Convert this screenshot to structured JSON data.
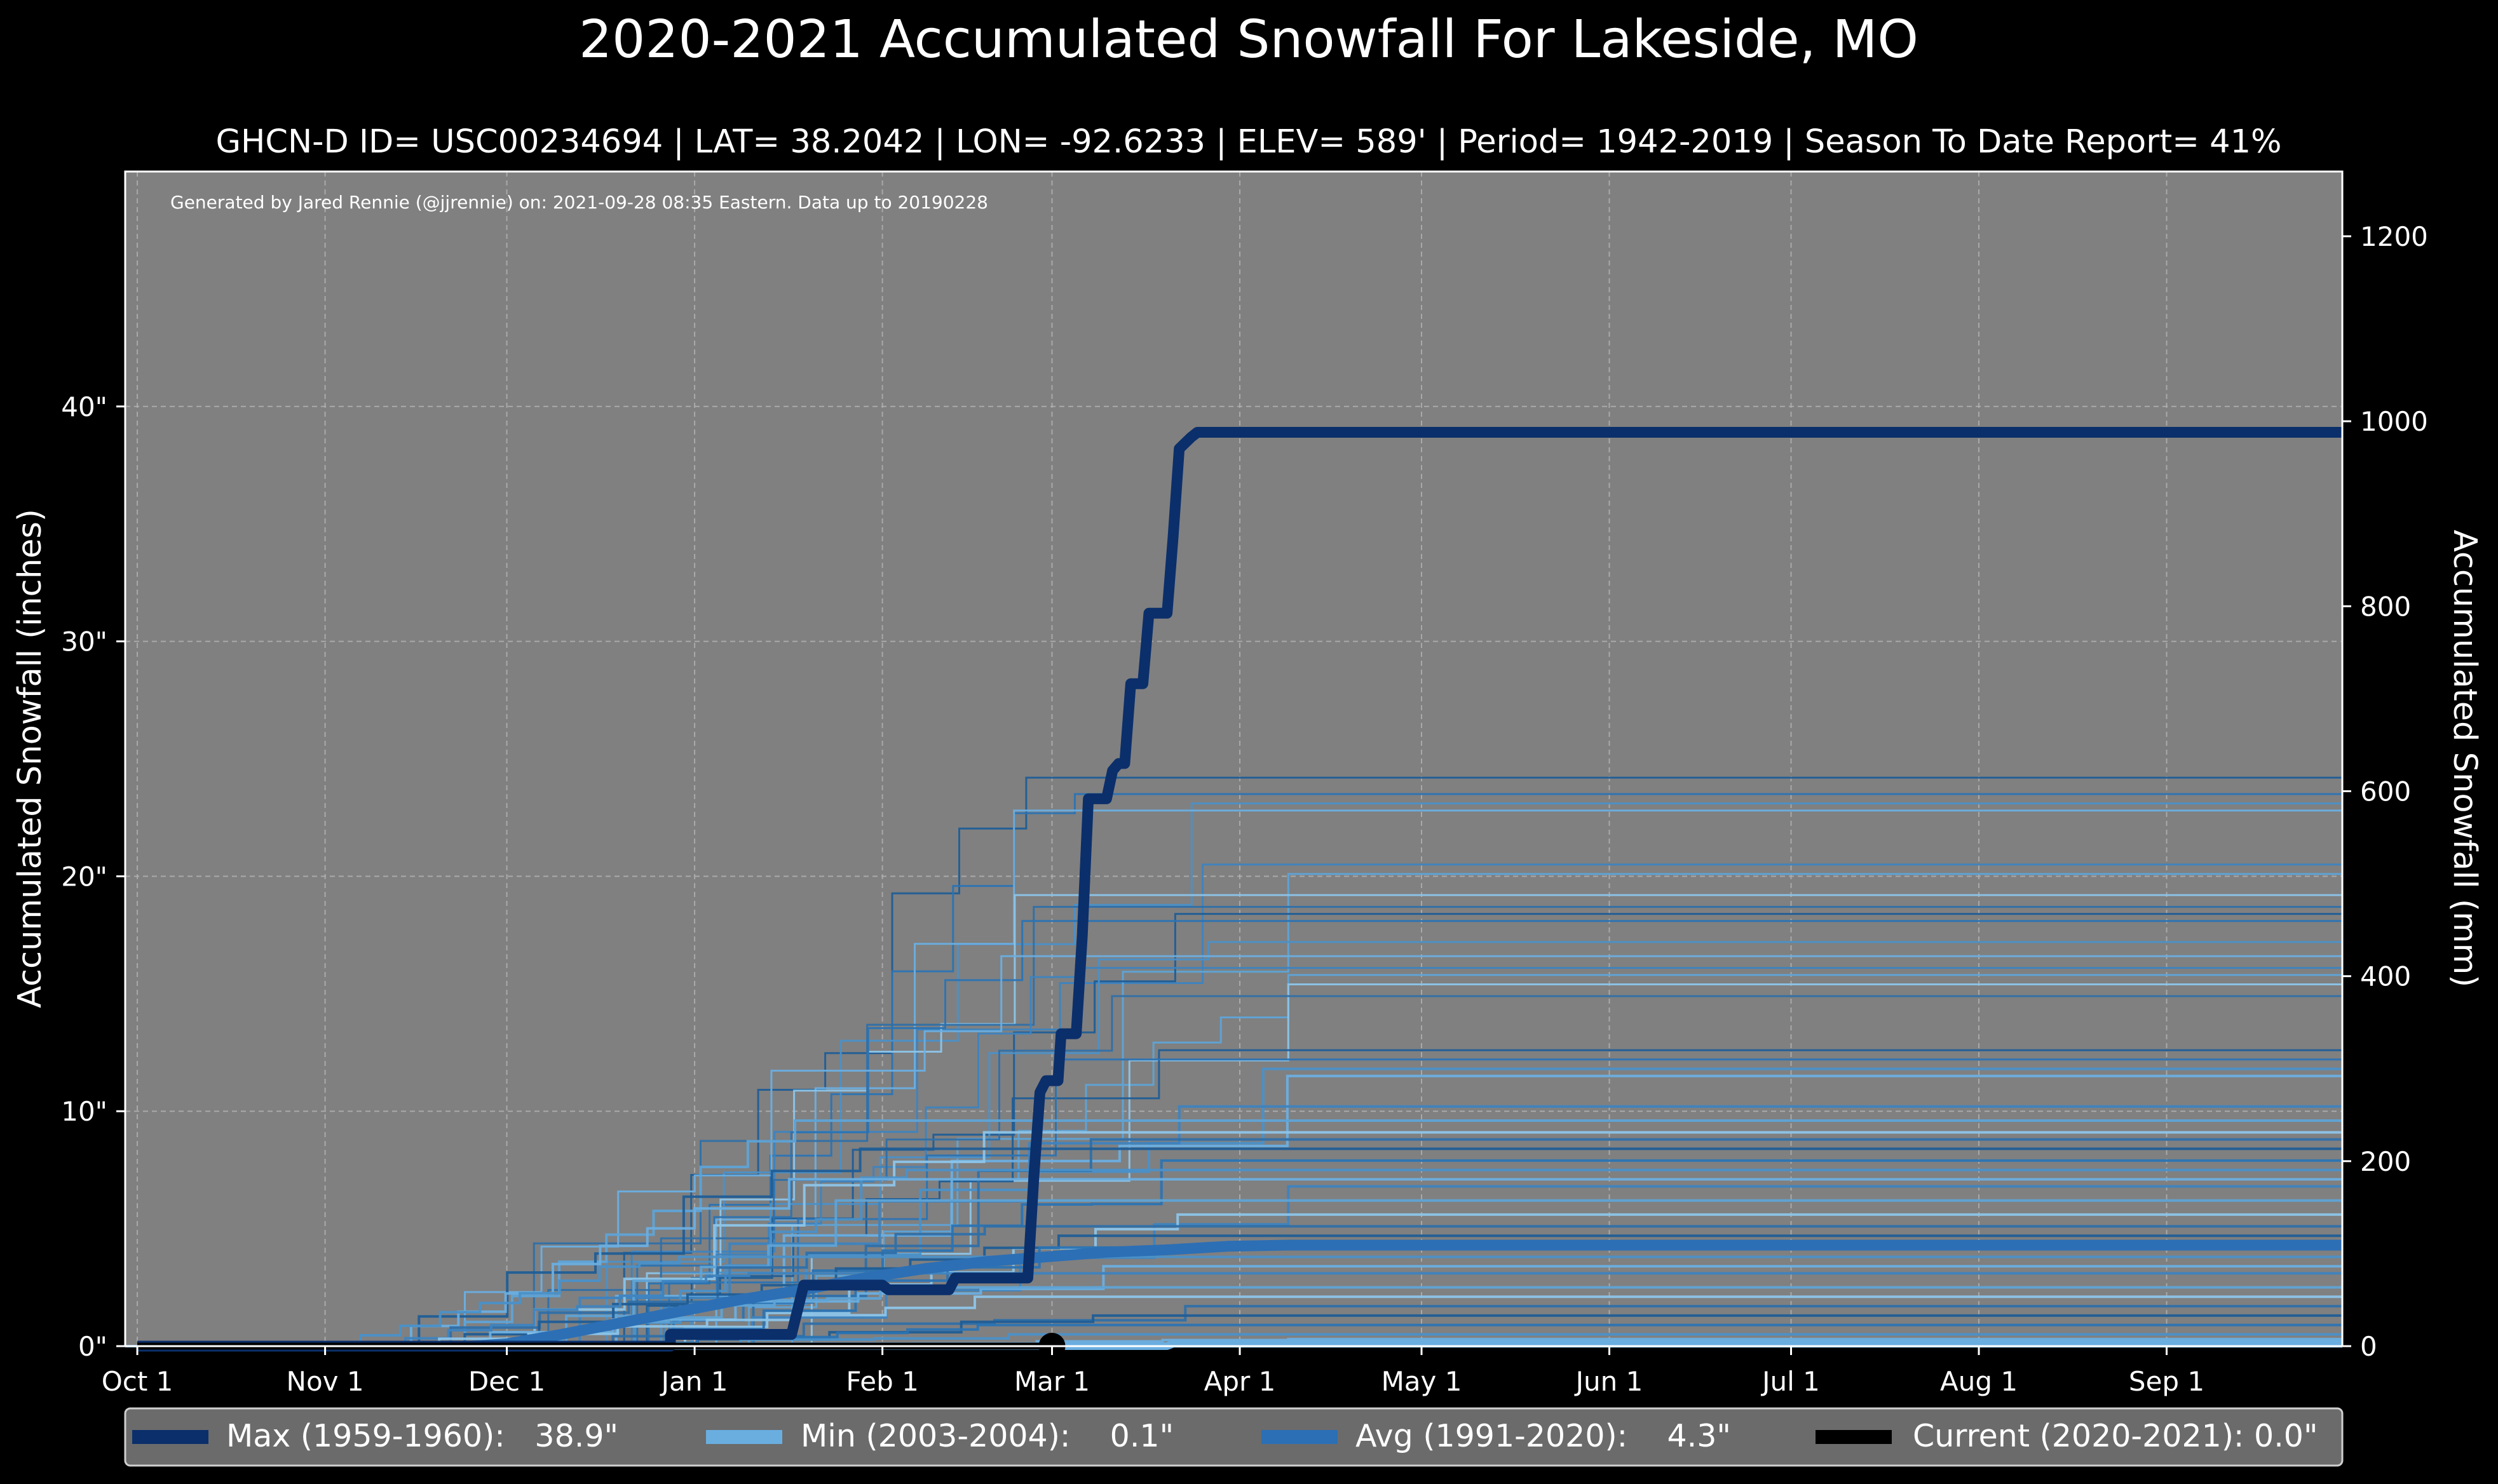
{
  "chart_data": {
    "type": "line",
    "title": "2020-2021 Accumulated Snowfall For Lakeside, MO",
    "subtitle": "GHCN-D ID= USC00234694 | LAT= 38.2042 | LON= -92.6233 | ELEV= 589' | Period= 1942-2019 | Season To Date Report= 41%",
    "credit": "Generated by Jared Rennie (@jjrennie) on: 2021-09-28 08:35 Eastern. Data up to 20190228",
    "ylabel": "Accumulated Snowfall (inches)",
    "ylabel_right": "Accumulated Snowfall (mm)",
    "xlim_days": [
      -2,
      364
    ],
    "ylim_inches": [
      0,
      50
    ],
    "x_ticks": [
      {
        "day": 0,
        "label": "Oct 1"
      },
      {
        "day": 31,
        "label": "Nov 1"
      },
      {
        "day": 61,
        "label": "Dec 1"
      },
      {
        "day": 92,
        "label": "Jan 1"
      },
      {
        "day": 123,
        "label": "Feb 1"
      },
      {
        "day": 151,
        "label": "Mar 1"
      },
      {
        "day": 182,
        "label": "Apr 1"
      },
      {
        "day": 212,
        "label": "May 1"
      },
      {
        "day": 243,
        "label": "Jun 1"
      },
      {
        "day": 273,
        "label": "Jul 1"
      },
      {
        "day": 304,
        "label": "Aug 1"
      },
      {
        "day": 335,
        "label": "Sep 1"
      }
    ],
    "y_ticks_left": [
      {
        "value": 0,
        "label": "0\""
      },
      {
        "value": 10,
        "label": "10\""
      },
      {
        "value": 20,
        "label": "20\""
      },
      {
        "value": 30,
        "label": "30\""
      },
      {
        "value": 40,
        "label": "40\""
      }
    ],
    "y_ticks_right_mm": [
      0,
      200,
      400,
      600,
      800,
      1000,
      1200
    ],
    "series": [
      {
        "name": "Max (1959-1960)",
        "legend_label": "Max (1959-1960):   38.9\"",
        "color": "#0b2f6b",
        "points": [
          [
            0,
            0
          ],
          [
            88,
            0
          ],
          [
            88,
            0.5
          ],
          [
            108,
            0.5
          ],
          [
            110,
            2.6
          ],
          [
            123,
            2.6
          ],
          [
            124,
            2.4
          ],
          [
            134,
            2.4
          ],
          [
            135,
            2.9
          ],
          [
            147,
            2.9
          ],
          [
            148,
            7.2
          ],
          [
            149,
            10.8
          ],
          [
            150,
            11.3
          ],
          [
            152,
            11.3
          ],
          [
            152.5,
            13.3
          ],
          [
            155,
            13.3
          ],
          [
            156,
            17.5
          ],
          [
            157,
            23.3
          ],
          [
            158,
            23.3
          ],
          [
            160,
            23.3
          ],
          [
            161,
            24.5
          ],
          [
            162,
            24.8
          ],
          [
            163,
            24.8
          ],
          [
            164,
            28.2
          ],
          [
            166,
            28.2
          ],
          [
            167,
            31.2
          ],
          [
            170,
            31.2
          ],
          [
            171,
            34.5
          ],
          [
            172,
            38.2
          ],
          [
            174,
            38.7
          ],
          [
            175,
            38.9
          ],
          [
            364,
            38.9
          ]
        ]
      },
      {
        "name": "Min (2003-2004)",
        "legend_label": "Min (2003-2004):    0.1\"",
        "color": "#6aaee0",
        "points": [
          [
            0,
            0
          ],
          [
            170,
            0
          ],
          [
            171,
            0.1
          ],
          [
            364,
            0.1
          ]
        ]
      },
      {
        "name": "Avg (1991-2020)",
        "legend_label": "Avg (1991-2020):    4.3\"",
        "color": "#2c6fb5",
        "points": [
          [
            0,
            0
          ],
          [
            55,
            0
          ],
          [
            61,
            0.1
          ],
          [
            70,
            0.5
          ],
          [
            80,
            1.0
          ],
          [
            90,
            1.5
          ],
          [
            100,
            2.0
          ],
          [
            110,
            2.4
          ],
          [
            120,
            2.9
          ],
          [
            130,
            3.3
          ],
          [
            140,
            3.6
          ],
          [
            150,
            3.8
          ],
          [
            160,
            4.0
          ],
          [
            170,
            4.1
          ],
          [
            180,
            4.25
          ],
          [
            190,
            4.3
          ],
          [
            364,
            4.3
          ]
        ]
      },
      {
        "name": "Current (2020-2021)",
        "legend_label": "Current (2020-2021): 0.0\"",
        "color": "#000000",
        "points": [
          [
            0,
            0
          ],
          [
            151,
            0
          ]
        ],
        "marker": [
          151,
          0
        ]
      }
    ],
    "background_seasons_final_inches": [
      24.2,
      23.5,
      23.1,
      22.8,
      20.5,
      20.1,
      19.2,
      18.7,
      18.4,
      18.1,
      17.2,
      16.6,
      16.1,
      15.8,
      15.4,
      14.9,
      12.6,
      12.2,
      11.8,
      11.5,
      10.2,
      9.6,
      9.1,
      8.8,
      8.4,
      7.9,
      7.5,
      7.1,
      6.8,
      6.2,
      5.6,
      5.1,
      4.7,
      4.2,
      3.8,
      3.4,
      3.1,
      2.5,
      2.1,
      1.7,
      1.3,
      0.9,
      0.5,
      0.3
    ]
  }
}
